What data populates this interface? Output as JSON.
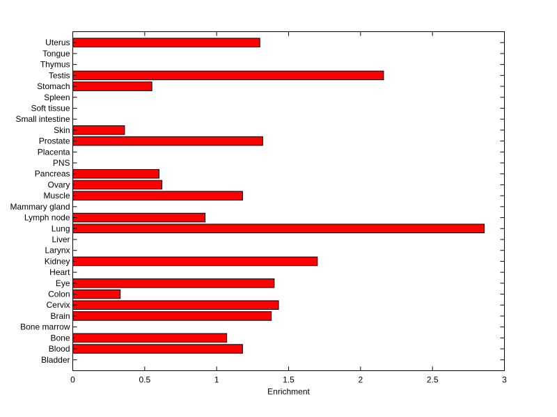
{
  "chart_data": {
    "type": "bar",
    "orientation": "horizontal",
    "categories": [
      "Bladder",
      "Blood",
      "Bone",
      "Bone marrow",
      "Brain",
      "Cervix",
      "Colon",
      "Eye",
      "Heart",
      "Kidney",
      "Larynx",
      "Liver",
      "Lung",
      "Lymph node",
      "Mammary gland",
      "Muscle",
      "Ovary",
      "Pancreas",
      "PNS",
      "Placenta",
      "Prostate",
      "Skin",
      "Small intestine",
      "Soft tissue",
      "Spleen",
      "Stomach",
      "Testis",
      "Thymus",
      "Tongue",
      "Uterus"
    ],
    "values": [
      0,
      1.18,
      1.07,
      0,
      1.38,
      1.43,
      0.33,
      1.4,
      0,
      1.7,
      0,
      0,
      2.86,
      0.92,
      0,
      1.18,
      0.62,
      0.6,
      0,
      0,
      1.32,
      0.36,
      0,
      0,
      0,
      0.55,
      2.16,
      0,
      0,
      1.3
    ],
    "title": "",
    "xlabel": "Enrichment",
    "ylabel": "",
    "xlim": [
      0,
      3
    ],
    "xticks": [
      0,
      0.5,
      1,
      1.5,
      2,
      2.5,
      3
    ],
    "xtick_labels": [
      "0",
      "0.5",
      "1",
      "1.5",
      "2",
      "2.5",
      "3"
    ],
    "grid": false,
    "legend": "none",
    "bar_color": "#ff0000",
    "bar_edge_color": "#000000"
  }
}
